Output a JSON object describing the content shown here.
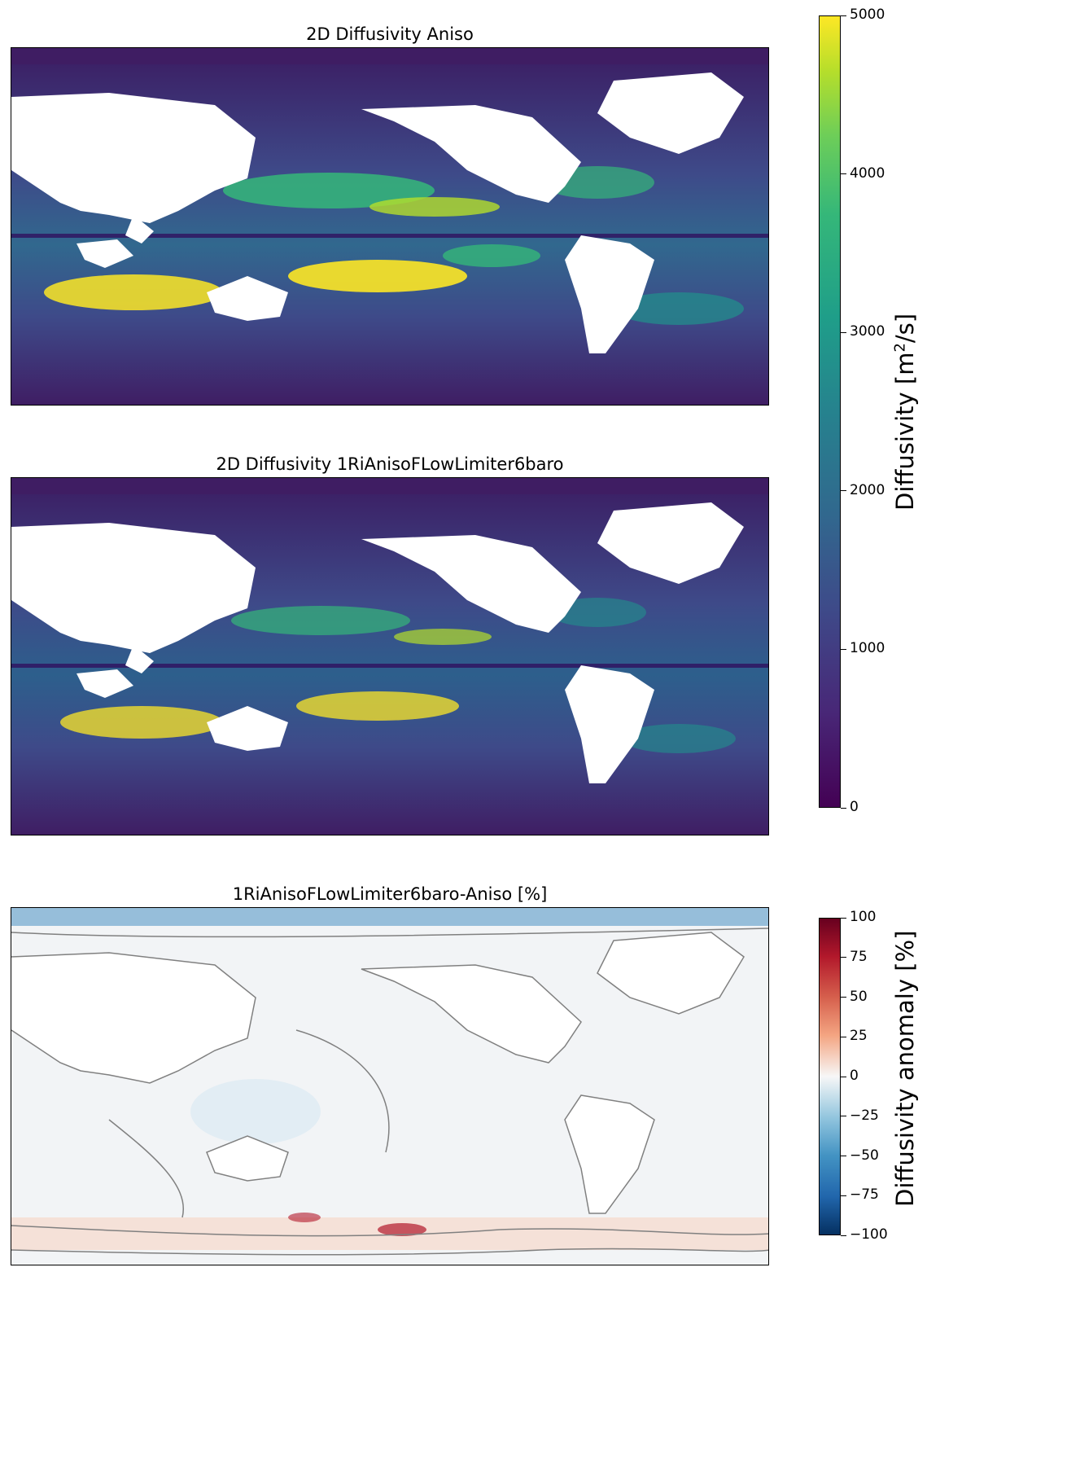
{
  "figure": {
    "panels": [
      {
        "title": "2D Diffusivity Aniso"
      },
      {
        "title": "2D Diffusivity 1RiAnisoFLowLimiter6baro"
      },
      {
        "title": "1RiAnisoFLowLimiter6baro-Aniso [%]"
      }
    ],
    "colorbar_top": {
      "label_main": "Diffusivity [m",
      "label_sup": "2",
      "label_end": "/s]",
      "ticks": [
        "0",
        "1000",
        "2000",
        "3000",
        "4000",
        "5000"
      ],
      "colormap": "viridis"
    },
    "colorbar_bottom": {
      "label": "Diffusivity anomaly [%]",
      "ticks": [
        "−100",
        "−75",
        "−50",
        "−25",
        "0",
        "25",
        "50",
        "75",
        "100"
      ],
      "colormap": "RdBu_r"
    }
  },
  "chart_data": [
    {
      "type": "heatmap",
      "title": "2D Diffusivity Aniso",
      "colorbar_label": "Diffusivity [m2/s]",
      "clim": [
        0,
        5000
      ],
      "colormap": "viridis"
    },
    {
      "type": "heatmap",
      "title": "2D Diffusivity 1RiAnisoFLowLimiter6baro",
      "colorbar_label": "Diffusivity [m2/s]",
      "clim": [
        0,
        5000
      ],
      "colormap": "viridis"
    },
    {
      "type": "heatmap",
      "title": "1RiAnisoFLowLimiter6baro-Aniso [%]",
      "colorbar_label": "Diffusivity anomaly [%]",
      "clim": [
        -100,
        100
      ],
      "colormap": "RdBu_r"
    }
  ]
}
